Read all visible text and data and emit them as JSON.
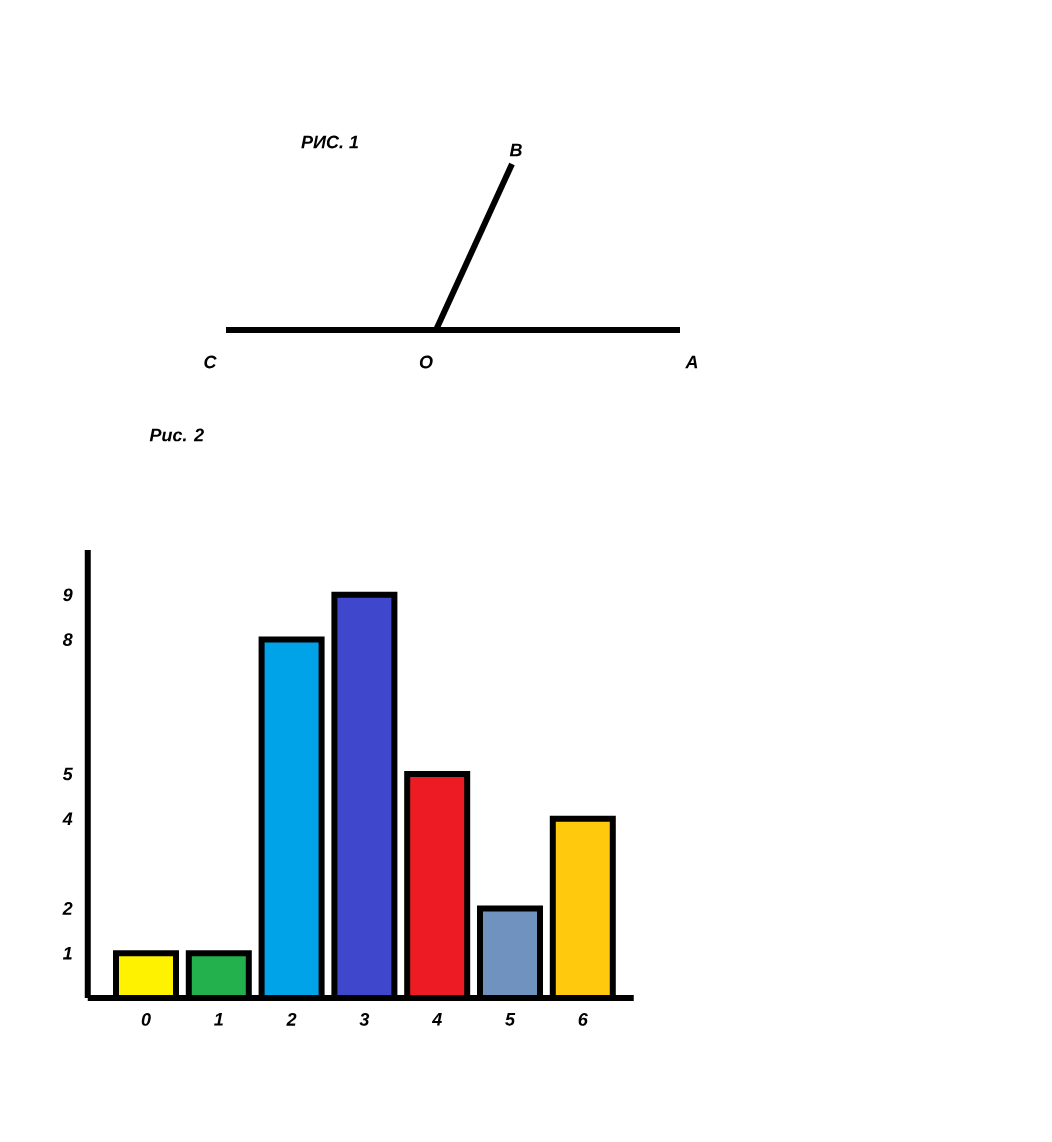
{
  "chart_data": [
    {
      "type": "other",
      "title": "РИС. 1",
      "annotations": [
        "B",
        "C",
        "O",
        "A"
      ]
    },
    {
      "type": "bar",
      "title": "Рис. 2",
      "categories": [
        "0",
        "1",
        "2",
        "3",
        "4",
        "5",
        "6"
      ],
      "values": [
        1,
        1,
        8,
        9,
        5,
        2,
        4
      ],
      "colors": [
        "#fff200",
        "#22b14c",
        "#00a2e8",
        "#3f48cc",
        "#ed1c24",
        "#7092be",
        "#ffc90e"
      ],
      "ylim": [
        0,
        10
      ],
      "yticks": [
        1,
        2,
        4,
        5,
        8,
        9
      ]
    }
  ]
}
